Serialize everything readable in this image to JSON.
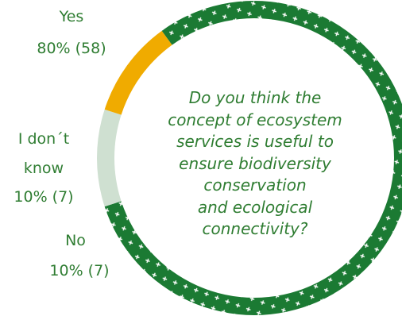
{
  "chart_data": {
    "type": "pie",
    "style": "donut",
    "question_lines": [
      "Do you think the",
      "concept of ecosystem",
      "services is useful to",
      "ensure biodiversity",
      "conservation",
      "and ecological",
      "connectivity?"
    ],
    "slices": [
      {
        "label": "Yes",
        "percent": 80,
        "count": 58,
        "value_text": "80% (58)",
        "color": "#1b7a33",
        "pattern": "white-crosses"
      },
      {
        "label": "I don´t know",
        "label_lines": [
          "I don´t",
          "know"
        ],
        "percent": 10,
        "count": 7,
        "value_text": "10% (7)",
        "color": "#cfe0d1"
      },
      {
        "label": "No",
        "percent": 10,
        "count": 7,
        "value_text": "10% (7)",
        "color": "#f0ab00"
      }
    ]
  }
}
